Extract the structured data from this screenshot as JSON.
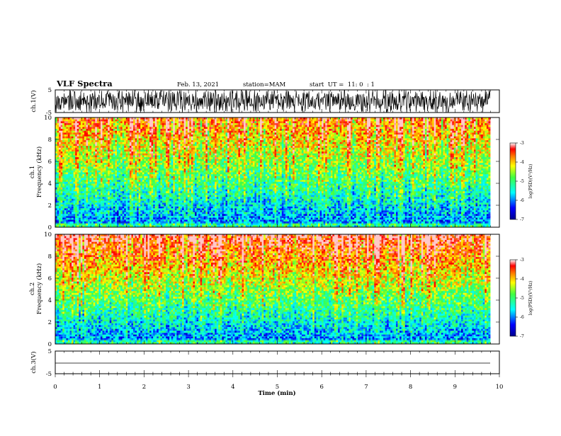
{
  "header": {
    "title": "VLF Spectra",
    "date": "Feb. 13, 2021",
    "station": "station=MAM",
    "start": "start  UT =  11: 0  : 1"
  },
  "chart_data": [
    {
      "type": "line",
      "panel": "ch1-waveform",
      "ylabel": "ch.1(V)",
      "ylim": [
        -5,
        5
      ],
      "yticks": [
        "5",
        "-5"
      ],
      "xlim": [
        0,
        10
      ]
    },
    {
      "type": "heatmap",
      "panel": "ch1-spectrogram",
      "ylabel": "ch.1 Frequency  (kHz)",
      "ylabel_ch": "ch.1",
      "ylabel_freq": "Frequency  (kHz)",
      "ylim": [
        0,
        10
      ],
      "yticks": [
        "0",
        "2",
        "4",
        "6",
        "8",
        "10"
      ],
      "xlim": [
        0,
        10
      ],
      "colorbar": {
        "label": "log(PSD)(V²/Hz)",
        "range": [
          -7,
          -3
        ],
        "ticks": [
          "-3",
          "-4",
          "-5",
          "-6",
          "-7"
        ]
      }
    },
    {
      "type": "heatmap",
      "panel": "ch2-spectrogram",
      "ylabel": "ch.2 Frequency  (kHz)",
      "ylabel_ch": "ch.2",
      "ylabel_freq": "Frequency  (kHz)",
      "ylim": [
        0,
        10
      ],
      "yticks": [
        "0",
        "2",
        "4",
        "6",
        "8",
        "10"
      ],
      "xlim": [
        0,
        10
      ],
      "colorbar": {
        "label": "log(PSD)(V²/Hz)",
        "range": [
          -7,
          -3
        ],
        "ticks": [
          "-3",
          "-4",
          "-5",
          "-6",
          "-7"
        ]
      }
    },
    {
      "type": "line",
      "panel": "ch3-waveform",
      "ylabel": "ch.3(V)",
      "ylim": [
        -5,
        5
      ],
      "yticks": [
        "5",
        "-5"
      ],
      "xlim": [
        0,
        10
      ],
      "xlabel": "Time  (min)",
      "xticks": [
        "0",
        "1",
        "2",
        "3",
        "4",
        "5",
        "6",
        "7",
        "8",
        "9",
        "10"
      ]
    }
  ],
  "colors": {
    "axis": "#000000",
    "waveform": "#000000"
  }
}
